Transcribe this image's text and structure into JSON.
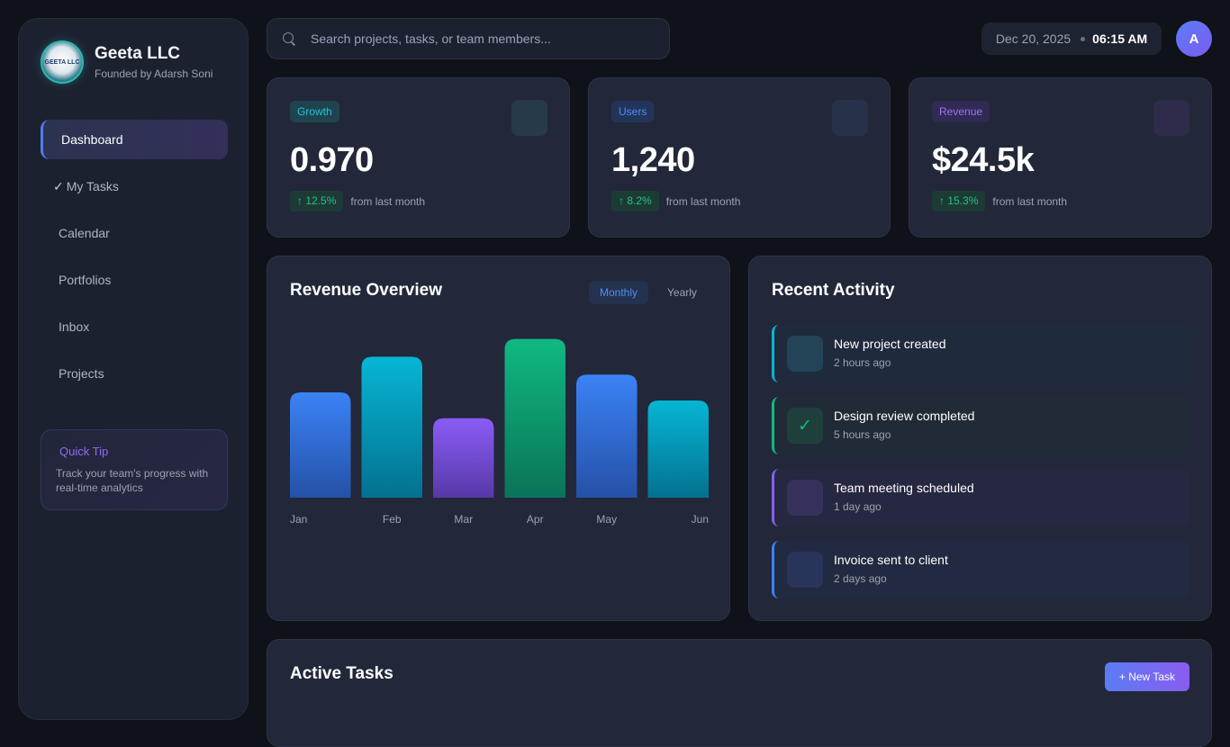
{
  "brand": {
    "name": "Geeta LLC",
    "subtitle": "Founded by Adarsh Soni",
    "logo_text": "GEETA LLC"
  },
  "nav": [
    {
      "label": "Dashboard",
      "active": true
    },
    {
      "label": "My Tasks",
      "prefix": "✓"
    },
    {
      "label": "Calendar"
    },
    {
      "label": "Portfolios"
    },
    {
      "label": "Inbox"
    },
    {
      "label": "Projects"
    }
  ],
  "tip": {
    "title": "Quick Tip",
    "text": "Track your team's progress with real-time analytics"
  },
  "search": {
    "placeholder": "Search projects, tasks, or team members...",
    "value": ""
  },
  "header": {
    "date": "Dec 20, 2025",
    "time": "06:15 AM",
    "avatar_initial": "A"
  },
  "stats": [
    {
      "badge": "Growth",
      "value": "0.970",
      "change": "↑ 12.5%",
      "from": "from last month"
    },
    {
      "badge": "Users",
      "value": "1,240",
      "change": "↑ 8.2%",
      "from": "from last month"
    },
    {
      "badge": "Revenue",
      "value": "$24.5k",
      "change": "↑ 15.3%",
      "from": "from last month"
    }
  ],
  "revenue": {
    "title": "Revenue Overview",
    "toggles": {
      "monthly": "Monthly",
      "yearly": "Yearly",
      "selected": "Monthly"
    }
  },
  "chart_data": {
    "type": "bar",
    "categories": [
      "Jan",
      "Feb",
      "Mar",
      "Apr",
      "May",
      "Jun"
    ],
    "values": [
      65,
      87,
      49,
      98,
      76,
      60
    ],
    "ylim": [
      0,
      100
    ],
    "title": "",
    "xlabel": "",
    "ylabel": "",
    "grid": false,
    "colors": [
      "#3b82f6",
      "#06b6d4",
      "#8b5cf6",
      "#10b981",
      "#3b82f6",
      "#06b6d4"
    ]
  },
  "activity": {
    "title": "Recent Activity",
    "items": [
      {
        "title": "New project created",
        "time": "2 hours ago",
        "icon": "",
        "accent": "#06b6d4"
      },
      {
        "title": "Design review completed",
        "time": "5 hours ago",
        "icon": "✓",
        "accent": "#10b981"
      },
      {
        "title": "Team meeting scheduled",
        "time": "1 day ago",
        "icon": "",
        "accent": "#8b5cf6"
      },
      {
        "title": "Invoice sent to client",
        "time": "2 days ago",
        "icon": "",
        "accent": "#3b82f6"
      }
    ]
  },
  "tasks": {
    "title": "Active Tasks",
    "new_label": "+ New Task"
  },
  "theme": {
    "accent_blue": "#3b82f6",
    "accent_cyan": "#06b6d4",
    "accent_purple": "#8b5cf6",
    "accent_green": "#10b981"
  }
}
